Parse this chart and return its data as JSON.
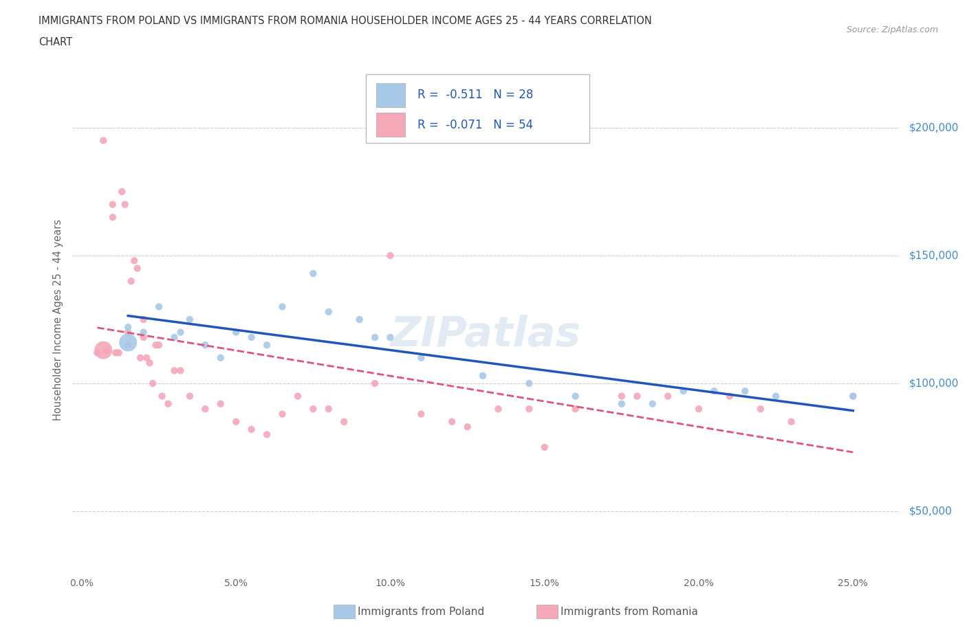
{
  "title_line1": "IMMIGRANTS FROM POLAND VS IMMIGRANTS FROM ROMANIA HOUSEHOLDER INCOME AGES 25 - 44 YEARS CORRELATION",
  "title_line2": "CHART",
  "source": "Source: ZipAtlas.com",
  "ylabel": "Householder Income Ages 25 - 44 years",
  "xlabel_ticks": [
    "0.0%",
    "5.0%",
    "10.0%",
    "15.0%",
    "20.0%",
    "25.0%"
  ],
  "xlabel_vals": [
    0.0,
    5.0,
    10.0,
    15.0,
    20.0,
    25.0
  ],
  "ytick_labels": [
    "$50,000",
    "$100,000",
    "$150,000",
    "$200,000"
  ],
  "ytick_vals": [
    50000,
    100000,
    150000,
    200000
  ],
  "ylim": [
    25000,
    225000
  ],
  "xlim": [
    -0.3,
    26.5
  ],
  "poland_R": -0.511,
  "poland_N": 28,
  "romania_R": -0.071,
  "romania_N": 54,
  "poland_color": "#a8c8e8",
  "romania_color": "#f4a8b8",
  "poland_line_color": "#2255bb",
  "romania_line_color": "#dd5577",
  "legend_label_poland": "Immigrants from Poland",
  "legend_label_romania": "Immigrants from Romania",
  "background_color": "#ffffff",
  "grid_color": "#cccccc",
  "watermark": "ZIPatlas",
  "poland_x": [
    1.5,
    2.0,
    2.5,
    3.0,
    3.2,
    3.5,
    4.0,
    4.5,
    5.0,
    5.5,
    6.0,
    6.5,
    7.5,
    8.0,
    9.0,
    9.5,
    10.0,
    11.0,
    13.0,
    14.5,
    16.0,
    17.5,
    18.5,
    19.5,
    20.5,
    21.5,
    22.5,
    25.0
  ],
  "poland_y": [
    122000,
    120000,
    130000,
    118000,
    120000,
    125000,
    115000,
    110000,
    120000,
    118000,
    115000,
    130000,
    143000,
    128000,
    125000,
    118000,
    118000,
    110000,
    103000,
    100000,
    95000,
    92000,
    92000,
    97000,
    97000,
    97000,
    95000,
    95000
  ],
  "romania_x": [
    0.5,
    0.7,
    0.8,
    1.0,
    1.0,
    1.1,
    1.2,
    1.3,
    1.4,
    1.5,
    1.5,
    1.6,
    1.7,
    1.8,
    1.9,
    2.0,
    2.0,
    2.1,
    2.2,
    2.3,
    2.4,
    2.5,
    2.6,
    2.8,
    3.0,
    3.2,
    3.5,
    4.0,
    4.5,
    5.0,
    5.5,
    6.0,
    6.5,
    7.0,
    7.5,
    8.0,
    8.5,
    9.5,
    10.0,
    11.0,
    12.0,
    12.5,
    13.5,
    14.5,
    15.0,
    16.0,
    17.5,
    18.0,
    19.0,
    20.0,
    21.0,
    22.0,
    23.0,
    25.0
  ],
  "romania_y": [
    112000,
    195000,
    113000,
    165000,
    170000,
    112000,
    112000,
    175000,
    170000,
    120000,
    115000,
    140000,
    148000,
    145000,
    110000,
    118000,
    125000,
    110000,
    108000,
    100000,
    115000,
    115000,
    95000,
    92000,
    105000,
    105000,
    95000,
    90000,
    92000,
    85000,
    82000,
    80000,
    88000,
    95000,
    90000,
    90000,
    85000,
    100000,
    150000,
    88000,
    85000,
    83000,
    90000,
    90000,
    75000,
    90000,
    95000,
    95000,
    95000,
    90000,
    95000,
    90000,
    85000,
    95000
  ],
  "romania_large_dot_x": 0.7,
  "romania_large_dot_y": 113000,
  "poland_large_dot_x": 1.5,
  "poland_large_dot_y": 116000
}
